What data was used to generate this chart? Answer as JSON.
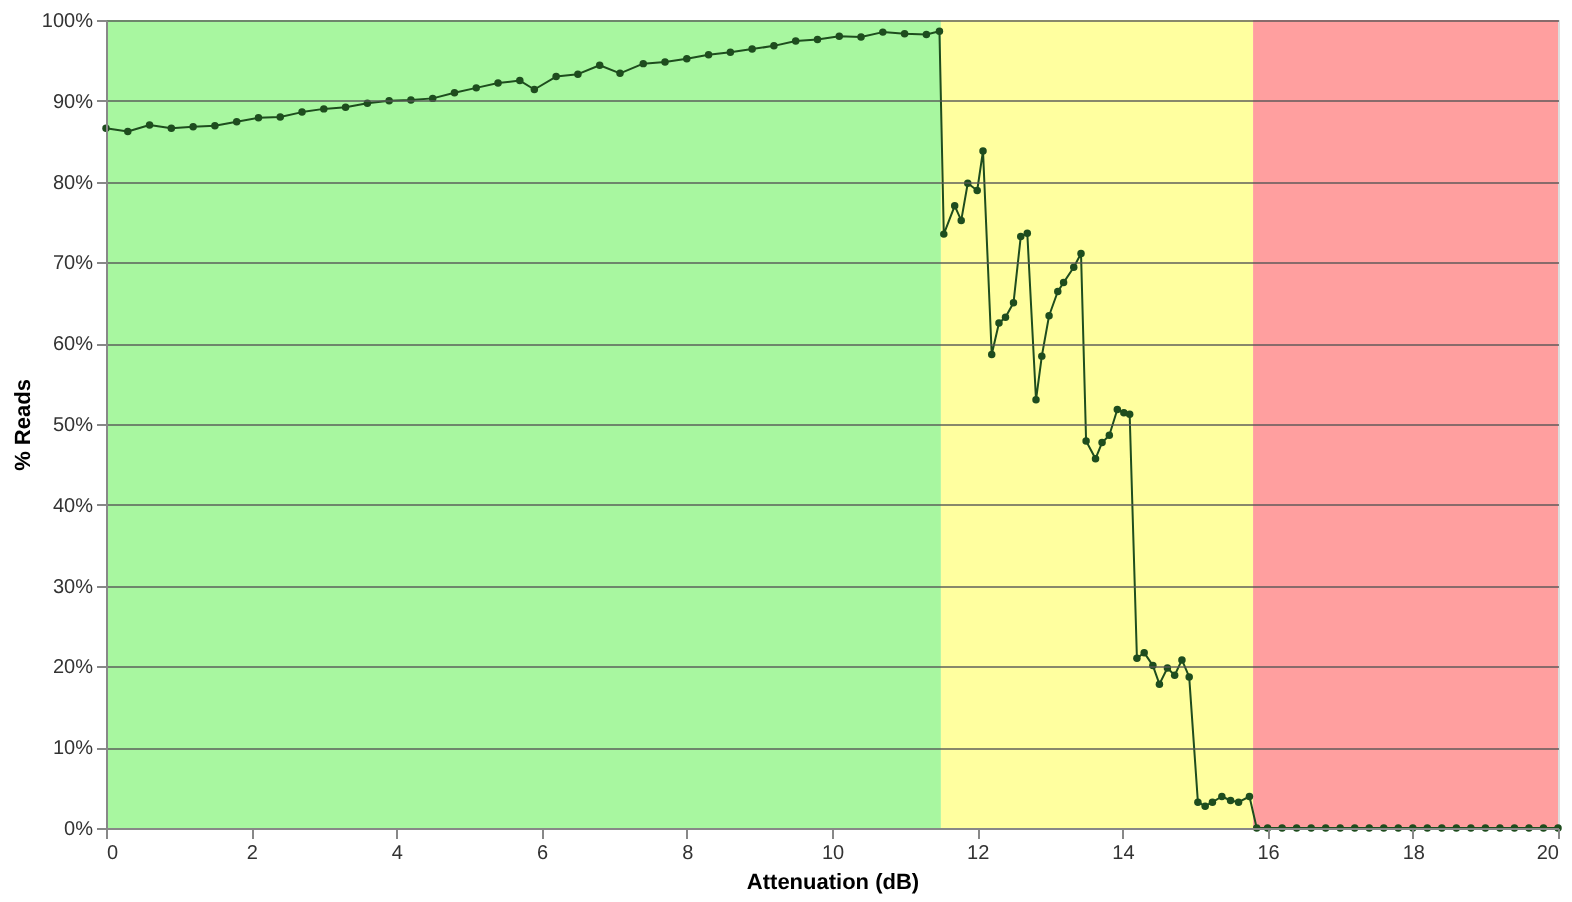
{
  "chart_data": {
    "type": "line",
    "xlabel": "Attenuation (dB)",
    "ylabel": "% Reads",
    "xlim": [
      0,
      20
    ],
    "xticks": [
      0,
      2,
      4,
      6,
      8,
      10,
      12,
      14,
      16,
      18,
      20
    ],
    "ylim": [
      0,
      100
    ],
    "yticks": [
      {
        "value": 0,
        "label": "0%"
      },
      {
        "value": 10,
        "label": "10%"
      },
      {
        "value": 20,
        "label": "20%"
      },
      {
        "value": 30,
        "label": "30%"
      },
      {
        "value": 40,
        "label": "40%"
      },
      {
        "value": 50,
        "label": "50%"
      },
      {
        "value": 60,
        "label": "60%"
      },
      {
        "value": 70,
        "label": "70%"
      },
      {
        "value": 80,
        "label": "80%"
      },
      {
        "value": 90,
        "label": "90%"
      },
      {
        "value": 100,
        "label": "100%"
      }
    ],
    "grid": "y",
    "marker": "circle",
    "line_style": "solid",
    "bands": [
      {
        "axis": "x",
        "from": 0,
        "to": 11.5,
        "color": "#a8f7a0"
      },
      {
        "axis": "x",
        "from": 11.5,
        "to": 15.8,
        "color": "#ffff9f"
      },
      {
        "axis": "x",
        "from": 15.8,
        "to": 20,
        "color": "#ff9f9f"
      }
    ],
    "series": [
      {
        "color": "#1e4d1e",
        "x": [
          0,
          0.3,
          0.6,
          0.9,
          1.2,
          1.5,
          1.8,
          2.1,
          2.4,
          2.7,
          3.0,
          3.3,
          3.6,
          3.9,
          4.2,
          4.5,
          4.8,
          5.1,
          5.4,
          5.7,
          5.9,
          6.2,
          6.5,
          6.8,
          7.08,
          7.4,
          7.7,
          8.0,
          8.3,
          8.6,
          8.9,
          9.2,
          9.5,
          9.8,
          10.1,
          10.4,
          10.7,
          11.0,
          11.3,
          11.48,
          11.54,
          11.69,
          11.78,
          11.87,
          12.0,
          12.08,
          12.2,
          12.3,
          12.39,
          12.5,
          12.6,
          12.69,
          12.81,
          12.89,
          12.99,
          13.11,
          13.19,
          13.33,
          13.43,
          13.5,
          13.63,
          13.72,
          13.82,
          13.93,
          14.02,
          14.1,
          14.2,
          14.3,
          14.42,
          14.51,
          14.62,
          14.72,
          14.82,
          14.92,
          15.04,
          15.14,
          15.24,
          15.37,
          15.49,
          15.6,
          15.75,
          15.85,
          16.0,
          16.2,
          16.4,
          16.6,
          16.8,
          17.0,
          17.2,
          17.4,
          17.6,
          17.8,
          18.0,
          18.2,
          18.4,
          18.6,
          18.8,
          19.0,
          19.2,
          19.4,
          19.6,
          19.8,
          20.0
        ],
        "values": [
          86.6,
          86.2,
          87.0,
          86.6,
          86.8,
          86.9,
          87.4,
          87.9,
          88.0,
          88.6,
          89.0,
          89.2,
          89.7,
          90.0,
          90.1,
          90.3,
          91.0,
          91.6,
          92.2,
          92.5,
          91.4,
          93.0,
          93.3,
          94.4,
          93.4,
          94.6,
          94.8,
          95.2,
          95.7,
          96.0,
          96.4,
          96.8,
          97.4,
          97.6,
          98.0,
          97.9,
          98.5,
          98.3,
          98.2,
          98.6,
          73.5,
          77.0,
          75.2,
          79.8,
          78.9,
          83.8,
          58.6,
          62.5,
          63.2,
          65.0,
          73.2,
          73.6,
          53.0,
          58.4,
          63.4,
          66.4,
          67.5,
          69.4,
          71.1,
          47.9,
          45.7,
          47.7,
          48.6,
          51.8,
          51.4,
          51.2,
          21.0,
          21.7,
          20.1,
          17.8,
          19.8,
          18.9,
          20.8,
          18.7,
          3.2,
          2.7,
          3.2,
          3.9,
          3.4,
          3.2,
          3.9,
          0,
          0,
          0,
          0,
          0,
          0,
          0,
          0,
          0,
          0,
          0,
          0,
          0,
          0,
          0,
          0,
          0,
          0,
          0,
          0,
          0,
          0
        ]
      }
    ]
  }
}
